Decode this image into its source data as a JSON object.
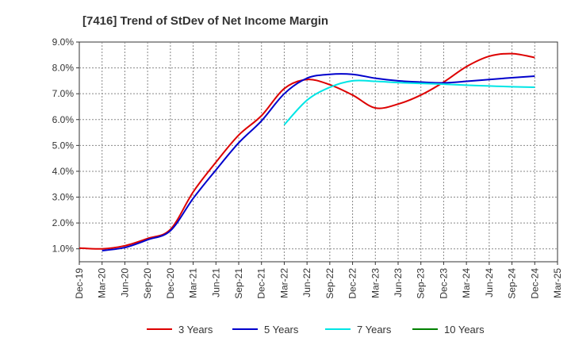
{
  "chart_data": {
    "type": "line",
    "title": "[7416]  Trend of StDev of Net Income Margin",
    "xlabel": "",
    "ylabel": "",
    "x": [
      "Dec-19",
      "Mar-20",
      "Jun-20",
      "Sep-20",
      "Dec-20",
      "Mar-21",
      "Jun-21",
      "Sep-21",
      "Dec-21",
      "Mar-22",
      "Jun-22",
      "Sep-22",
      "Dec-22",
      "Mar-23",
      "Jun-23",
      "Sep-23",
      "Dec-23",
      "Mar-24",
      "Jun-24",
      "Sep-24",
      "Dec-24",
      "Mar-25"
    ],
    "yticks": [
      "1.0%",
      "2.0%",
      "3.0%",
      "4.0%",
      "5.0%",
      "6.0%",
      "7.0%",
      "8.0%",
      "9.0%"
    ],
    "ylim": [
      0.5,
      9.0
    ],
    "grid": true,
    "legend_position": "bottom",
    "series": [
      {
        "name": "3 Years",
        "color": "#dd0000",
        "values": [
          1.03,
          1.0,
          1.12,
          1.4,
          1.75,
          3.2,
          4.35,
          5.4,
          6.15,
          7.2,
          7.55,
          7.35,
          6.95,
          6.45,
          6.6,
          6.95,
          7.45,
          8.05,
          8.45,
          8.55,
          8.4,
          null
        ]
      },
      {
        "name": "5 Years",
        "color": "#0000cc",
        "values": [
          null,
          0.93,
          1.05,
          1.35,
          1.7,
          2.95,
          4.05,
          5.1,
          5.95,
          7.0,
          7.6,
          7.75,
          7.75,
          7.6,
          7.5,
          7.45,
          7.42,
          7.48,
          7.55,
          7.62,
          7.68,
          null
        ]
      },
      {
        "name": "7 Years",
        "color": "#00e5e5",
        "values": [
          null,
          null,
          null,
          null,
          null,
          null,
          null,
          null,
          null,
          5.8,
          6.75,
          7.25,
          7.5,
          7.48,
          7.43,
          7.4,
          7.37,
          7.33,
          7.3,
          7.27,
          7.25,
          null
        ]
      },
      {
        "name": "10 Years",
        "color": "#008000",
        "values": [
          null,
          null,
          null,
          null,
          null,
          null,
          null,
          null,
          null,
          null,
          null,
          null,
          null,
          null,
          null,
          null,
          null,
          null,
          null,
          null,
          null,
          null
        ]
      }
    ]
  }
}
